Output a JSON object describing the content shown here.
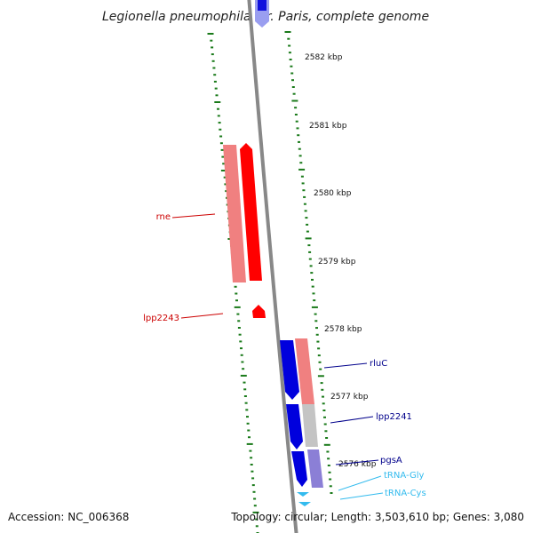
{
  "title": "Legionella pneumophila str. Paris, complete genome",
  "footer": {
    "accession": "Accession: NC_006368",
    "topology": "Topology: circular; Length: 3,503,610 bp; Genes: 3,080"
  },
  "ruler": [
    {
      "label": "2582 kbp"
    },
    {
      "label": "2581 kbp"
    },
    {
      "label": "2580 kbp"
    },
    {
      "label": "2579 kbp"
    },
    {
      "label": "2578 kbp"
    },
    {
      "label": "2577 kbp"
    },
    {
      "label": "2576 kbp"
    }
  ],
  "genes": [
    {
      "name": "rne",
      "color": "#cc0000"
    },
    {
      "name": "lpp2243",
      "color": "#cc0000"
    },
    {
      "name": "rluC",
      "color": "#00008b"
    },
    {
      "name": "lpp2241",
      "color": "#00008b"
    },
    {
      "name": "pgsA",
      "color": "#00008b"
    },
    {
      "name": "tRNA-Gly",
      "color": "#33bbee"
    },
    {
      "name": "tRNA-Cys",
      "color": "#33bbee"
    }
  ],
  "colors": {
    "forward_cds": "#ff0000",
    "forward_feature": "#f08080",
    "reverse_cds": "#0000dd",
    "reverse_feature": "#8b7fd6",
    "trna": "#33bbee",
    "tick": "#1a7a1a",
    "backbone": "#888888"
  }
}
